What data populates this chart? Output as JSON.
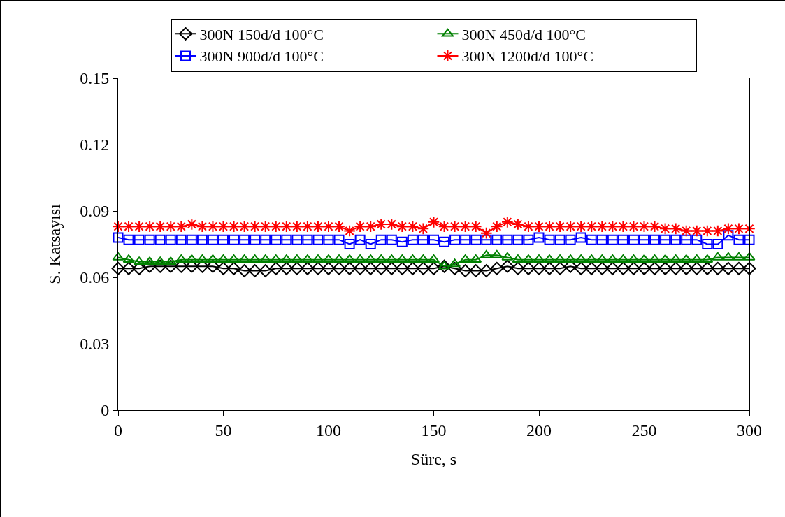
{
  "chart_data": {
    "type": "line",
    "xlabel": "Süre, s",
    "ylabel": "S. Katsayısı",
    "x": [
      0,
      5,
      10,
      15,
      20,
      25,
      30,
      35,
      40,
      45,
      50,
      55,
      60,
      65,
      70,
      75,
      80,
      85,
      90,
      95,
      100,
      105,
      110,
      115,
      120,
      125,
      130,
      135,
      140,
      145,
      150,
      155,
      160,
      165,
      170,
      175,
      180,
      185,
      190,
      195,
      200,
      205,
      210,
      215,
      220,
      225,
      230,
      235,
      240,
      245,
      250,
      255,
      260,
      265,
      270,
      275,
      280,
      285,
      290,
      295,
      300
    ],
    "series": [
      {
        "name": "300N 150d/d 100°C",
        "color": "#000000",
        "marker": "diamond",
        "values": [
          0.064,
          0.064,
          0.064,
          0.065,
          0.065,
          0.065,
          0.065,
          0.065,
          0.065,
          0.065,
          0.064,
          0.064,
          0.063,
          0.063,
          0.063,
          0.064,
          0.064,
          0.064,
          0.064,
          0.064,
          0.064,
          0.064,
          0.064,
          0.064,
          0.064,
          0.064,
          0.064,
          0.064,
          0.064,
          0.064,
          0.064,
          0.065,
          0.064,
          0.063,
          0.063,
          0.063,
          0.064,
          0.065,
          0.064,
          0.064,
          0.064,
          0.064,
          0.064,
          0.065,
          0.064,
          0.064,
          0.064,
          0.064,
          0.064,
          0.064,
          0.064,
          0.064,
          0.064,
          0.064,
          0.064,
          0.064,
          0.064,
          0.064,
          0.064,
          0.064,
          0.064
        ]
      },
      {
        "name": "300N 450d/d 100°C",
        "color": "#008000",
        "marker": "triangle",
        "values": [
          0.069,
          0.068,
          0.067,
          0.067,
          0.067,
          0.067,
          0.068,
          0.068,
          0.068,
          0.068,
          0.068,
          0.068,
          0.068,
          0.068,
          0.068,
          0.068,
          0.068,
          0.068,
          0.068,
          0.068,
          0.068,
          0.068,
          0.068,
          0.068,
          0.068,
          0.068,
          0.068,
          0.068,
          0.068,
          0.068,
          0.068,
          0.065,
          0.066,
          0.068,
          0.068,
          0.07,
          0.07,
          0.069,
          0.068,
          0.068,
          0.068,
          0.068,
          0.068,
          0.068,
          0.068,
          0.068,
          0.068,
          0.068,
          0.068,
          0.068,
          0.068,
          0.068,
          0.068,
          0.068,
          0.068,
          0.068,
          0.068,
          0.069,
          0.069,
          0.069,
          0.069
        ]
      },
      {
        "name": "300N 900d/d 100°C",
        "color": "#0000ff",
        "marker": "square",
        "values": [
          0.078,
          0.077,
          0.077,
          0.077,
          0.077,
          0.077,
          0.077,
          0.077,
          0.077,
          0.077,
          0.077,
          0.077,
          0.077,
          0.077,
          0.077,
          0.077,
          0.077,
          0.077,
          0.077,
          0.077,
          0.077,
          0.077,
          0.075,
          0.077,
          0.075,
          0.077,
          0.077,
          0.076,
          0.077,
          0.077,
          0.077,
          0.076,
          0.077,
          0.077,
          0.077,
          0.077,
          0.077,
          0.077,
          0.077,
          0.077,
          0.078,
          0.077,
          0.077,
          0.077,
          0.078,
          0.077,
          0.077,
          0.077,
          0.077,
          0.077,
          0.077,
          0.077,
          0.077,
          0.077,
          0.077,
          0.077,
          0.075,
          0.075,
          0.079,
          0.077,
          0.077
        ]
      },
      {
        "name": "300N 1200d/d 100°C",
        "color": "#ff0000",
        "marker": "cross",
        "values": [
          0.083,
          0.083,
          0.083,
          0.083,
          0.083,
          0.083,
          0.083,
          0.084,
          0.083,
          0.083,
          0.083,
          0.083,
          0.083,
          0.083,
          0.083,
          0.083,
          0.083,
          0.083,
          0.083,
          0.083,
          0.083,
          0.083,
          0.081,
          0.083,
          0.083,
          0.084,
          0.084,
          0.083,
          0.083,
          0.082,
          0.085,
          0.083,
          0.083,
          0.083,
          0.083,
          0.08,
          0.083,
          0.085,
          0.084,
          0.083,
          0.083,
          0.083,
          0.083,
          0.083,
          0.083,
          0.083,
          0.083,
          0.083,
          0.083,
          0.083,
          0.083,
          0.083,
          0.082,
          0.082,
          0.081,
          0.081,
          0.081,
          0.081,
          0.082,
          0.082,
          0.082
        ]
      }
    ],
    "xlim": [
      0,
      300
    ],
    "xticks": [
      0,
      50,
      100,
      150,
      200,
      250,
      300
    ],
    "ylim": [
      0,
      0.15
    ],
    "yticks": [
      0,
      0.03,
      0.06,
      0.09,
      0.12,
      0.15
    ],
    "grid": false,
    "legend": "top",
    "line_style": "solid"
  }
}
